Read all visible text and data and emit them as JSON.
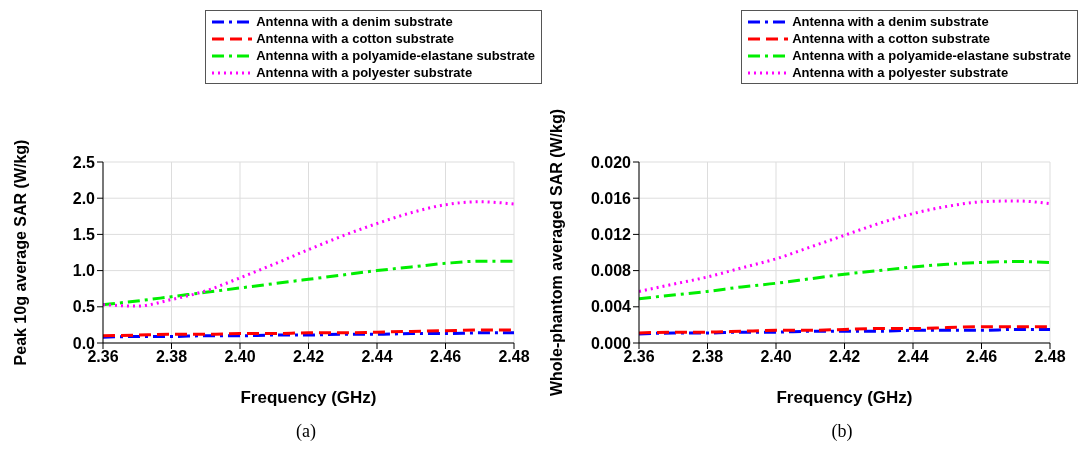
{
  "chart_data": [
    {
      "type": "line",
      "xlabel": "Frequency (GHz)",
      "ylabel": "Peak 10g average SAR (W/kg)",
      "x": [
        2.36,
        2.37,
        2.38,
        2.39,
        2.4,
        2.41,
        2.42,
        2.43,
        2.44,
        2.45,
        2.46,
        2.47,
        2.48
      ],
      "series": [
        {
          "name": "Antenna with a denim substrate",
          "color": "#0000ff",
          "line_style": "dashdot",
          "values": [
            0.08,
            0.09,
            0.09,
            0.1,
            0.1,
            0.11,
            0.11,
            0.12,
            0.12,
            0.13,
            0.13,
            0.14,
            0.14
          ]
        },
        {
          "name": "Antenna with a cotton substrate",
          "color": "#ff0000",
          "line_style": "dashed",
          "values": [
            0.1,
            0.11,
            0.12,
            0.12,
            0.13,
            0.13,
            0.14,
            0.14,
            0.15,
            0.16,
            0.17,
            0.18,
            0.18
          ]
        },
        {
          "name": "Antenna with a polyamide-elastane substrate",
          "color": "#00ee00",
          "line_style": "dashdot",
          "values": [
            0.53,
            0.58,
            0.64,
            0.7,
            0.76,
            0.82,
            0.88,
            0.94,
            1.0,
            1.05,
            1.1,
            1.13,
            1.13
          ]
        },
        {
          "name": "Antenna with a polyester substrate",
          "color": "#ff00ff",
          "line_style": "dotted",
          "values": [
            0.53,
            0.51,
            0.6,
            0.72,
            0.9,
            1.09,
            1.29,
            1.48,
            1.65,
            1.8,
            1.91,
            1.95,
            1.92
          ]
        }
      ],
      "xlim": [
        2.36,
        2.48
      ],
      "xticks": [
        2.36,
        2.38,
        {
          "value": 2.4,
          "label": "2.40"
        },
        2.42,
        2.44,
        2.46,
        2.48
      ],
      "ylim": [
        0,
        2.5
      ],
      "yticks": [
        {
          "value": 0,
          "label": "0.0"
        },
        0.5,
        {
          "value": 1,
          "label": "1.0"
        },
        1.5,
        {
          "value": 2,
          "label": "2.0"
        },
        2.5
      ],
      "grid": true,
      "legend": "top right",
      "marker": "none",
      "annotations": [
        "(a)"
      ]
    },
    {
      "type": "line",
      "xlabel": "Frequency (GHz)",
      "ylabel": "Whole-phantom averaged SAR (W/kg)",
      "x": [
        2.36,
        2.37,
        2.38,
        2.39,
        2.4,
        2.41,
        2.42,
        2.43,
        2.44,
        2.45,
        2.46,
        2.47,
        2.48
      ],
      "series": [
        {
          "name": "Antenna with a denim substrate",
          "color": "#0000ff",
          "line_style": "dashdot",
          "values": [
            0.001,
            0.0011,
            0.0011,
            0.0012,
            0.0012,
            0.0013,
            0.0013,
            0.0013,
            0.0014,
            0.0014,
            0.0014,
            0.0015,
            0.0015
          ]
        },
        {
          "name": "Antenna with a cotton substrate",
          "color": "#ff0000",
          "line_style": "dashed",
          "values": [
            0.0011,
            0.0012,
            0.0012,
            0.0013,
            0.0014,
            0.0014,
            0.0015,
            0.0016,
            0.0016,
            0.0017,
            0.0018,
            0.0018,
            0.0018
          ]
        },
        {
          "name": "Antenna with a polyamide-elastane substrate",
          "color": "#00ee00",
          "line_style": "dashdot",
          "values": [
            0.0049,
            0.0053,
            0.0057,
            0.0062,
            0.0066,
            0.0071,
            0.0076,
            0.008,
            0.0084,
            0.0087,
            0.0089,
            0.009,
            0.0089
          ]
        },
        {
          "name": "Antenna with a polyester substrate",
          "color": "#ff00ff",
          "line_style": "dotted",
          "values": [
            0.0057,
            0.0065,
            0.0073,
            0.0083,
            0.0093,
            0.0106,
            0.0119,
            0.0132,
            0.0143,
            0.0151,
            0.0156,
            0.0157,
            0.0154
          ]
        }
      ],
      "xlim": [
        2.36,
        2.48
      ],
      "xticks": [
        2.36,
        2.38,
        {
          "value": 2.4,
          "label": "2.40"
        },
        2.42,
        2.44,
        2.46,
        2.48
      ],
      "ylim": [
        0,
        0.02
      ],
      "yticks": [
        {
          "value": 0,
          "label": "0.000"
        },
        {
          "value": 0.004,
          "label": "0.004"
        },
        {
          "value": 0.008,
          "label": "0.008"
        },
        {
          "value": 0.012,
          "label": "0.012"
        },
        {
          "value": 0.016,
          "label": "0.016"
        },
        {
          "value": 0.02,
          "label": "0.020"
        }
      ],
      "grid": true,
      "legend": "top right",
      "marker": "none",
      "annotations": [
        "(b)"
      ]
    }
  ]
}
